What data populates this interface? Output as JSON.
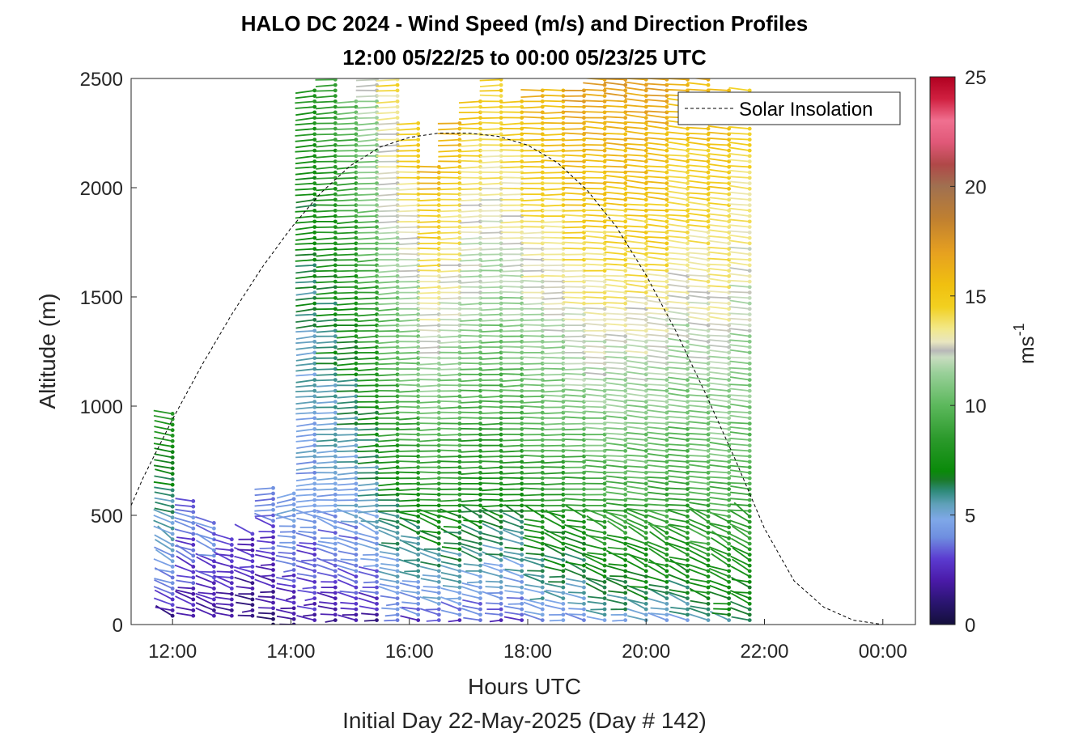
{
  "chart_data": {
    "type": "scatter",
    "title": "HALO DC 2024 - Wind Speed (m/s) and Direction Profiles",
    "subtitle": "12:00 05/22/25 to 00:00 05/23/25  UTC",
    "xlabel": "Hours UTC",
    "xlabel2": "Initial Day 22-May-2025 (Day # 142)",
    "ylabel": "Altitude (m)",
    "xlim": [
      11.3,
      24.55
    ],
    "ylim": [
      0,
      2500
    ],
    "x_ticks": [
      12,
      14,
      16,
      18,
      20,
      22,
      24
    ],
    "x_tick_labels": [
      "12:00",
      "14:00",
      "16:00",
      "18:00",
      "20:00",
      "22:00",
      "00:00"
    ],
    "y_ticks": [
      0,
      500,
      1000,
      1500,
      2000,
      2500
    ],
    "y_tick_labels": [
      "0",
      "500",
      "1000",
      "1500",
      "2000",
      "2500"
    ],
    "grid": false,
    "legend": {
      "entry": "Solar Insolation",
      "placement": "top-right"
    },
    "colorbar": {
      "label": "ms",
      "label_superscript": "-1",
      "range": [
        0,
        25
      ],
      "ticks": [
        0,
        5,
        10,
        15,
        20,
        25
      ],
      "tick_labels": [
        "0",
        "5",
        "10",
        "15",
        "20",
        "25"
      ],
      "stops": [
        [
          0,
          "#140f3c"
        ],
        [
          1,
          "#2a1570"
        ],
        [
          2,
          "#4a1aa8"
        ],
        [
          3,
          "#5b3bd0"
        ],
        [
          4,
          "#6f8fe0"
        ],
        [
          4.8,
          "#7fa8e8"
        ],
        [
          5.5,
          "#5fa0b8"
        ],
        [
          6.1,
          "#2e8a7a"
        ],
        [
          6.6,
          "#1a7a2a"
        ],
        [
          7,
          "#0a8a0a"
        ],
        [
          8.5,
          "#2c9a2c"
        ],
        [
          10,
          "#5cb85c"
        ],
        [
          11.5,
          "#9ad09a"
        ],
        [
          12.2,
          "#c8dcc0"
        ],
        [
          12.5,
          "#b8b8b8"
        ],
        [
          12.9,
          "#e8e6c0"
        ],
        [
          13.5,
          "#f2e88a"
        ],
        [
          14.5,
          "#f2d020"
        ],
        [
          15.5,
          "#f0c010"
        ],
        [
          17,
          "#e6a020"
        ],
        [
          18.5,
          "#c08030"
        ],
        [
          20,
          "#a07050"
        ],
        [
          21,
          "#b04848"
        ],
        [
          22,
          "#e05878"
        ],
        [
          23,
          "#f07090"
        ],
        [
          24,
          "#d02040"
        ],
        [
          25,
          "#b00020"
        ]
      ]
    },
    "solar_insolation": {
      "style": "dashed black line",
      "x": [
        11.3,
        11.5,
        12,
        12.5,
        13,
        13.5,
        14,
        14.5,
        15,
        15.5,
        16,
        16.5,
        17,
        17.5,
        18,
        18.5,
        19,
        19.5,
        20,
        20.5,
        21,
        21.5,
        22,
        22.5,
        23,
        23.5,
        24,
        24.55
      ],
      "y": [
        545,
        670,
        940,
        1190,
        1420,
        1630,
        1815,
        1975,
        2100,
        2185,
        2230,
        2250,
        2250,
        2235,
        2195,
        2115,
        1990,
        1820,
        1600,
        1345,
        1060,
        760,
        440,
        200,
        80,
        20,
        0,
        0
      ]
    },
    "profiles": {
      "description_values": "wind barbs: time (hours UTC), altitude range (m), speed range (m/s), mean direction (deg)",
      "columns": [
        {
          "time": 12.0,
          "alt_min": 40,
          "alt_max": 980,
          "speed_low": 2,
          "speed_high": 8,
          "dir": 110
        },
        {
          "time": 12.35,
          "alt_min": 40,
          "alt_max": 580,
          "speed_low": 2,
          "speed_high": 4,
          "dir": 100
        },
        {
          "time": 12.7,
          "alt_min": 40,
          "alt_max": 480,
          "speed_low": 2,
          "speed_high": 4,
          "dir": 95
        },
        {
          "time": 13.0,
          "alt_min": 40,
          "alt_max": 400,
          "speed_low": 1.5,
          "speed_high": 3,
          "dir": 90
        },
        {
          "time": 13.35,
          "alt_min": 40,
          "alt_max": 420,
          "speed_low": 1,
          "speed_high": 3,
          "dir": 85
        },
        {
          "time": 13.7,
          "alt_min": 0,
          "alt_max": 640,
          "speed_low": 1,
          "speed_high": 4,
          "dir": 80
        },
        {
          "time": 14.05,
          "alt_min": 0,
          "alt_max": 620,
          "speed_low": 1,
          "speed_high": 5,
          "dir": 70
        },
        {
          "time": 14.4,
          "alt_min": 20,
          "alt_max": 2450,
          "speed_low": 2,
          "speed_high": 8,
          "dir": 80
        },
        {
          "time": 14.75,
          "alt_min": 20,
          "alt_max": 2500,
          "speed_low": 2,
          "speed_high": 9,
          "dir": 85
        },
        {
          "time": 15.1,
          "alt_min": 20,
          "alt_max": 2400,
          "speed_low": 2,
          "speed_high": 10,
          "dir": 85
        },
        {
          "time": 15.45,
          "alt_min": 20,
          "alt_max": 2500,
          "speed_low": 2,
          "speed_high": 12,
          "dir": 85
        },
        {
          "time": 15.8,
          "alt_min": 20,
          "alt_max": 2500,
          "speed_low": 3,
          "speed_high": 14,
          "dir": 85
        },
        {
          "time": 16.15,
          "alt_min": 20,
          "alt_max": 2300,
          "speed_low": 3,
          "speed_high": 15,
          "dir": 88
        },
        {
          "time": 16.5,
          "alt_min": 20,
          "alt_max": 2100,
          "speed_low": 3,
          "speed_high": 16,
          "dir": 88
        },
        {
          "time": 16.85,
          "alt_min": 20,
          "alt_max": 2300,
          "speed_low": 3,
          "speed_high": 16,
          "dir": 88
        },
        {
          "time": 17.2,
          "alt_min": 20,
          "alt_max": 2400,
          "speed_low": 3,
          "speed_high": 15,
          "dir": 88
        },
        {
          "time": 17.55,
          "alt_min": 20,
          "alt_max": 2500,
          "speed_low": 3,
          "speed_high": 15,
          "dir": 88
        },
        {
          "time": 17.9,
          "alt_min": 20,
          "alt_max": 2400,
          "speed_low": 3,
          "speed_high": 15,
          "dir": 88
        },
        {
          "time": 18.25,
          "alt_min": 20,
          "alt_max": 2450,
          "speed_low": 4,
          "speed_high": 16,
          "dir": 90
        },
        {
          "time": 18.6,
          "alt_min": 20,
          "alt_max": 2450,
          "speed_low": 4,
          "speed_high": 16,
          "dir": 90
        },
        {
          "time": 18.95,
          "alt_min": 20,
          "alt_max": 2450,
          "speed_low": 4,
          "speed_high": 17,
          "dir": 92
        },
        {
          "time": 19.3,
          "alt_min": 20,
          "alt_max": 2500,
          "speed_low": 5,
          "speed_high": 17,
          "dir": 95
        },
        {
          "time": 19.65,
          "alt_min": 20,
          "alt_max": 2500,
          "speed_low": 5,
          "speed_high": 17,
          "dir": 98
        },
        {
          "time": 20.0,
          "alt_min": 20,
          "alt_max": 2500,
          "speed_low": 5,
          "speed_high": 17,
          "dir": 100
        },
        {
          "time": 20.35,
          "alt_min": 20,
          "alt_max": 2500,
          "speed_low": 5,
          "speed_high": 17,
          "dir": 100
        },
        {
          "time": 20.7,
          "alt_min": 20,
          "alt_max": 2500,
          "speed_low": 5,
          "speed_high": 16,
          "dir": 100
        },
        {
          "time": 21.05,
          "alt_min": 20,
          "alt_max": 2500,
          "speed_low": 6,
          "speed_high": 16,
          "dir": 100
        },
        {
          "time": 21.4,
          "alt_min": 20,
          "alt_max": 2450,
          "speed_low": 6,
          "speed_high": 16,
          "dir": 100
        },
        {
          "time": 21.75,
          "alt_min": 20,
          "alt_max": 2450,
          "speed_low": 6,
          "speed_high": 15,
          "dir": 100
        }
      ]
    }
  }
}
